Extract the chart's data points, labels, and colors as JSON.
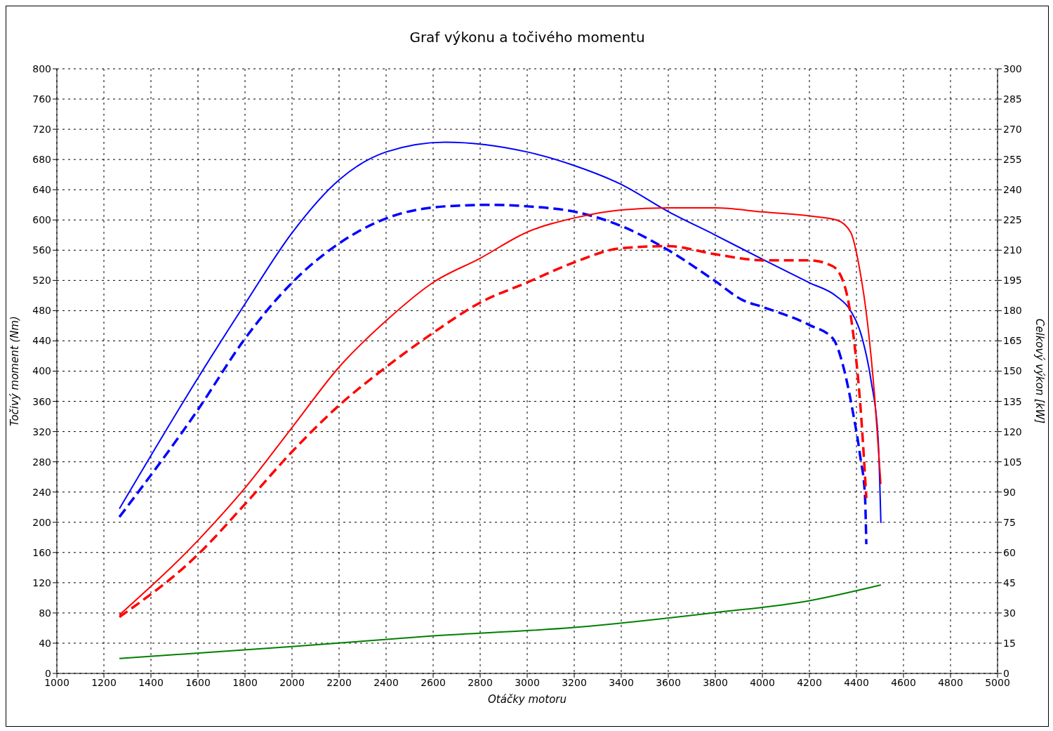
{
  "chart_data": {
    "type": "line",
    "title": "Graf výkonu a točivého momentu",
    "xlabel": "Otáčky motoru",
    "ylabel": "Točivý moment (Nm)",
    "y2label": "Celkový výkon [kW]",
    "xlim": [
      1000,
      5000
    ],
    "xticks": [
      1000,
      1200,
      1400,
      1600,
      1800,
      2000,
      2200,
      2400,
      2600,
      2800,
      3000,
      3200,
      3400,
      3600,
      3800,
      4000,
      4200,
      4400,
      4600,
      4800,
      5000
    ],
    "ylim": [
      0,
      800
    ],
    "yticks": [
      0,
      40,
      80,
      120,
      160,
      200,
      240,
      280,
      320,
      360,
      400,
      440,
      480,
      520,
      560,
      600,
      640,
      680,
      720,
      760,
      800
    ],
    "y2lim": [
      0,
      300
    ],
    "y2ticks": [
      0,
      15,
      30,
      45,
      60,
      75,
      90,
      105,
      120,
      135,
      150,
      165,
      180,
      195,
      210,
      225,
      240,
      255,
      270,
      285,
      300
    ],
    "grid": true,
    "series": [
      {
        "color": "#0000ff",
        "line_style": "solid",
        "x": [
          1266,
          1600,
          1800,
          2000,
          2200,
          2400,
          2650,
          3000,
          3200,
          3400,
          3600,
          3800,
          4000,
          4200,
          4315,
          4375,
          4425,
          4463,
          4492,
          4504
        ],
        "values": [
          218,
          391,
          489,
          583,
          653,
          690,
          703,
          690,
          672,
          647,
          611,
          580,
          548,
          517,
          499,
          480,
          443,
          386,
          312,
          199
        ]
      },
      {
        "color": "#0000ff",
        "line_style": "dashed",
        "x": [
          1266,
          1600,
          1800,
          2000,
          2200,
          2400,
          2650,
          2850,
          3000,
          3200,
          3400,
          3600,
          3800,
          3916,
          4000,
          4200,
          4300,
          4345,
          4383,
          4418,
          4436,
          4442
        ],
        "values": [
          207,
          349,
          443,
          517,
          569,
          602,
          618,
          620,
          618,
          611,
          592,
          560,
          519,
          494,
          485,
          461,
          443,
          405,
          349,
          283,
          237,
          171
        ]
      },
      {
        "color": "#ff0000",
        "line_style": "solid",
        "axis": "y2",
        "x": [
          1266,
          1600,
          1800,
          2000,
          2200,
          2400,
          2600,
          2800,
          3000,
          3200,
          3400,
          3600,
          3800,
          4000,
          4200,
          4315,
          4375,
          4413,
          4448,
          4477,
          4504
        ],
        "values": [
          29,
          66,
          92,
          122,
          152,
          175,
          194,
          206,
          219,
          226,
          230,
          231,
          231,
          229,
          227,
          225,
          219,
          201,
          173,
          138,
          94
        ]
      },
      {
        "color": "#ff0000",
        "line_style": "dashed",
        "axis": "y2",
        "x": [
          1266,
          1600,
          1800,
          2000,
          2200,
          2400,
          2600,
          2800,
          3000,
          3200,
          3400,
          3600,
          3800,
          4000,
          4200,
          4300,
          4353,
          4389,
          4418,
          4442
        ],
        "values": [
          28,
          59,
          84,
          110,
          133,
          152,
          169,
          184,
          194,
          204,
          211,
          212,
          208,
          205,
          205,
          202,
          191,
          166,
          131,
          87
        ]
      },
      {
        "color": "#008000",
        "line_style": "solid",
        "axis": "y2",
        "x": [
          1266,
          2000,
          2600,
          3200,
          3800,
          4200,
          4504
        ],
        "values": [
          7.4,
          13.3,
          18.6,
          22.8,
          30.2,
          36.1,
          43.9
        ]
      }
    ]
  }
}
